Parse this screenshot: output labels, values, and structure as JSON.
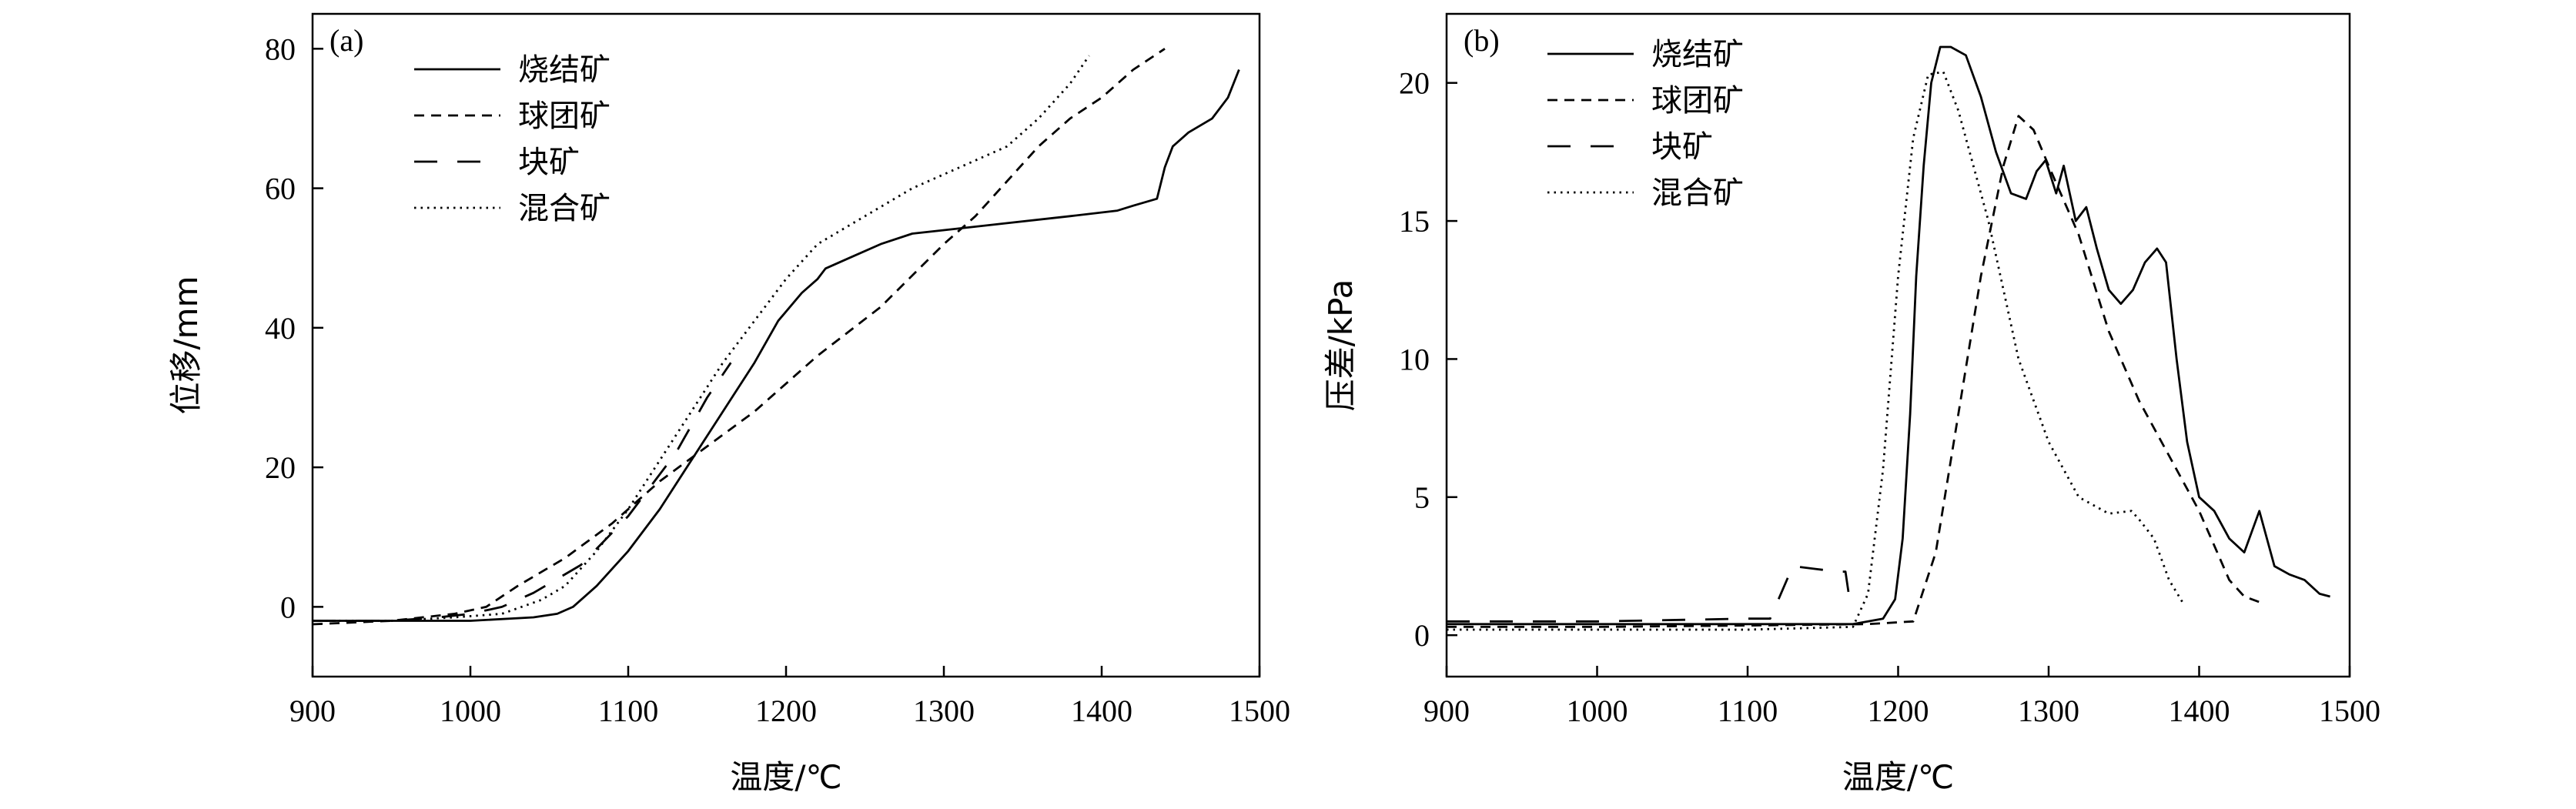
{
  "chart_data": [
    {
      "type": "line",
      "panel_label": "(a)",
      "xlabel": "温度/℃",
      "ylabel": "位移/mm",
      "xlim": [
        900,
        1500
      ],
      "ylim": [
        -10,
        85
      ],
      "xticks": [
        900,
        1000,
        1100,
        1200,
        1300,
        1400,
        1500
      ],
      "yticks": [
        0,
        20,
        40,
        60,
        80
      ],
      "legend_position": "top-left",
      "series": [
        {
          "name": "烧结矿",
          "style": "solid",
          "points": [
            [
              900,
              -2
            ],
            [
              950,
              -2
            ],
            [
              1000,
              -2
            ],
            [
              1040,
              -1.5
            ],
            [
              1055,
              -1
            ],
            [
              1065,
              0
            ],
            [
              1080,
              3
            ],
            [
              1100,
              8
            ],
            [
              1120,
              14
            ],
            [
              1140,
              21
            ],
            [
              1160,
              28
            ],
            [
              1180,
              35
            ],
            [
              1195,
              41
            ],
            [
              1210,
              45
            ],
            [
              1220,
              47
            ],
            [
              1225,
              48.5
            ],
            [
              1240,
              50
            ],
            [
              1260,
              52
            ],
            [
              1280,
              53.5
            ],
            [
              1300,
              54
            ],
            [
              1340,
              55
            ],
            [
              1380,
              56
            ],
            [
              1410,
              56.8
            ],
            [
              1420,
              57.5
            ],
            [
              1435,
              58.5
            ],
            [
              1440,
              63
            ],
            [
              1445,
              66
            ],
            [
              1455,
              68
            ],
            [
              1470,
              70
            ],
            [
              1480,
              73
            ],
            [
              1487,
              77
            ]
          ]
        },
        {
          "name": "球团矿",
          "style": "short-dash",
          "points": [
            [
              900,
              -2.5
            ],
            [
              950,
              -2
            ],
            [
              990,
              -1
            ],
            [
              1010,
              0
            ],
            [
              1030,
              3
            ],
            [
              1060,
              7
            ],
            [
              1090,
              12
            ],
            [
              1120,
              18
            ],
            [
              1150,
              23
            ],
            [
              1180,
              28
            ],
            [
              1220,
              36
            ],
            [
              1260,
              43
            ],
            [
              1300,
              52
            ],
            [
              1320,
              56
            ],
            [
              1340,
              61
            ],
            [
              1360,
              66
            ],
            [
              1380,
              70
            ],
            [
              1400,
              73
            ],
            [
              1420,
              77
            ],
            [
              1440,
              80
            ]
          ]
        },
        {
          "name": "块矿",
          "style": "long-dash",
          "points": [
            [
              900,
              -2
            ],
            [
              950,
              -2
            ],
            [
              980,
              -1.5
            ],
            [
              1000,
              -1
            ],
            [
              1020,
              0
            ],
            [
              1040,
              2
            ],
            [
              1070,
              6
            ],
            [
              1100,
              13
            ],
            [
              1130,
              22
            ],
            [
              1150,
              30
            ],
            [
              1165,
              35
            ]
          ]
        },
        {
          "name": "混合矿",
          "style": "dotted",
          "points": [
            [
              900,
              -2
            ],
            [
              950,
              -2
            ],
            [
              990,
              -1.5
            ],
            [
              1020,
              -1
            ],
            [
              1045,
              1
            ],
            [
              1060,
              3
            ],
            [
              1080,
              8
            ],
            [
              1100,
              14
            ],
            [
              1120,
              21
            ],
            [
              1140,
              28
            ],
            [
              1160,
              35
            ],
            [
              1180,
              41
            ],
            [
              1200,
              47
            ],
            [
              1220,
              52
            ],
            [
              1250,
              56
            ],
            [
              1280,
              60
            ],
            [
              1300,
              62
            ],
            [
              1340,
              66
            ],
            [
              1360,
              70
            ],
            [
              1380,
              75
            ],
            [
              1392,
              79
            ]
          ]
        }
      ]
    },
    {
      "type": "line",
      "panel_label": "(b)",
      "xlabel": "温度/℃",
      "ylabel": "压差/kPa",
      "xlim": [
        900,
        1500
      ],
      "ylim": [
        -1.5,
        22.5
      ],
      "xticks": [
        900,
        1000,
        1100,
        1200,
        1300,
        1400,
        1500
      ],
      "yticks": [
        0,
        5,
        10,
        15,
        20
      ],
      "legend_position": "top-left",
      "series": [
        {
          "name": "烧结矿",
          "style": "solid",
          "points": [
            [
              900,
              0.4
            ],
            [
              1000,
              0.4
            ],
            [
              1100,
              0.4
            ],
            [
              1170,
              0.4
            ],
            [
              1190,
              0.6
            ],
            [
              1198,
              1.3
            ],
            [
              1203,
              3.5
            ],
            [
              1208,
              8
            ],
            [
              1212,
              13
            ],
            [
              1217,
              17
            ],
            [
              1222,
              20
            ],
            [
              1228,
              21.3
            ],
            [
              1235,
              21.3
            ],
            [
              1245,
              21
            ],
            [
              1255,
              19.5
            ],
            [
              1265,
              17.5
            ],
            [
              1275,
              16
            ],
            [
              1285,
              15.8
            ],
            [
              1292,
              16.8
            ],
            [
              1298,
              17.2
            ],
            [
              1305,
              16
            ],
            [
              1310,
              17
            ],
            [
              1318,
              15
            ],
            [
              1325,
              15.5
            ],
            [
              1332,
              14
            ],
            [
              1340,
              12.5
            ],
            [
              1348,
              12
            ],
            [
              1356,
              12.5
            ],
            [
              1364,
              13.5
            ],
            [
              1372,
              14
            ],
            [
              1378,
              13.5
            ],
            [
              1385,
              10
            ],
            [
              1392,
              7
            ],
            [
              1400,
              5
            ],
            [
              1410,
              4.5
            ],
            [
              1420,
              3.5
            ],
            [
              1430,
              3
            ],
            [
              1440,
              4.5
            ],
            [
              1450,
              2.5
            ],
            [
              1460,
              2.2
            ],
            [
              1470,
              2
            ],
            [
              1480,
              1.5
            ],
            [
              1487,
              1.4
            ]
          ]
        },
        {
          "name": "球团矿",
          "style": "short-dash",
          "points": [
            [
              900,
              0.3
            ],
            [
              1000,
              0.3
            ],
            [
              1100,
              0.35
            ],
            [
              1180,
              0.4
            ],
            [
              1210,
              0.5
            ],
            [
              1225,
              3
            ],
            [
              1240,
              8
            ],
            [
              1255,
              13
            ],
            [
              1270,
              17
            ],
            [
              1280,
              18.8
            ],
            [
              1290,
              18.3
            ],
            [
              1300,
              17
            ],
            [
              1320,
              14.5
            ],
            [
              1340,
              11
            ],
            [
              1360,
              8.5
            ],
            [
              1380,
              6.5
            ],
            [
              1400,
              4.5
            ],
            [
              1420,
              2
            ],
            [
              1430,
              1.4
            ],
            [
              1440,
              1.2
            ]
          ]
        },
        {
          "name": "块矿",
          "style": "long-dash",
          "points": [
            [
              900,
              0.5
            ],
            [
              1000,
              0.5
            ],
            [
              1100,
              0.6
            ],
            [
              1115,
              0.6
            ],
            [
              1130,
              2.5
            ],
            [
              1145,
              2.4
            ],
            [
              1160,
              2.3
            ],
            [
              1165,
              2.3
            ],
            [
              1168,
              1.2
            ]
          ]
        },
        {
          "name": "混合矿",
          "style": "dotted",
          "points": [
            [
              900,
              0.2
            ],
            [
              1000,
              0.2
            ],
            [
              1100,
              0.2
            ],
            [
              1170,
              0.3
            ],
            [
              1180,
              1.5
            ],
            [
              1190,
              6
            ],
            [
              1200,
              13
            ],
            [
              1210,
              18
            ],
            [
              1220,
              20.3
            ],
            [
              1230,
              20.4
            ],
            [
              1240,
              19
            ],
            [
              1260,
              15
            ],
            [
              1280,
              10
            ],
            [
              1300,
              7
            ],
            [
              1320,
              5
            ],
            [
              1340,
              4.4
            ],
            [
              1355,
              4.5
            ],
            [
              1360,
              4.2
            ],
            [
              1370,
              3.5
            ],
            [
              1380,
              2
            ],
            [
              1390,
              1.1
            ]
          ]
        }
      ]
    }
  ]
}
